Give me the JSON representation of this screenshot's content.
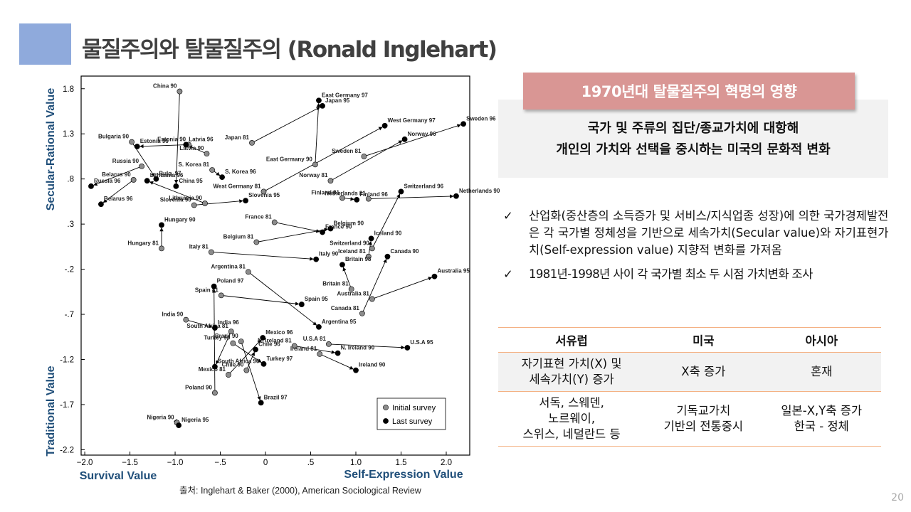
{
  "header": {
    "title": "물질주의와 탈물질주의 (Ronald Inglehart)"
  },
  "chart_data": {
    "type": "scatter",
    "y_label_top": "Secular-Rational Value",
    "y_label_bottom": "Traditional Value",
    "x_label_left": "Survival Value",
    "x_label_right": "Self-Expression Value",
    "source": "출처: Inglehart & Baker (2000), American Sociological Review",
    "xlim": [
      -2.04,
      2.26
    ],
    "ylim": [
      -2.26,
      1.94
    ],
    "xticks": [
      {
        "value": -2,
        "label": "−2.0"
      },
      {
        "value": -1.5,
        "label": "−1.5"
      },
      {
        "value": -1,
        "label": "−1.0"
      },
      {
        "value": -0.5,
        "label": "−.5"
      },
      0,
      {
        "value": 0.5,
        "label": ".5"
      },
      {
        "value": 1,
        "label": "1.0"
      },
      {
        "value": 1.5,
        "label": "1.5"
      },
      {
        "value": 2,
        "label": "2.0"
      }
    ],
    "yticks": [
      1.8,
      1.3,
      {
        "value": 0.8,
        "label": ".8"
      },
      {
        "value": 0.3,
        "label": ".3"
      },
      {
        "value": -0.2,
        "label": "-.2"
      },
      {
        "value": -0.7,
        "label": "-.7"
      },
      {
        "value": -1.2,
        "label": "-1.2"
      },
      {
        "value": -1.7,
        "label": "-1.7"
      },
      {
        "value": -2.2,
        "label": "-2.2"
      }
    ],
    "legend": "bottom-right",
    "series": [
      {
        "name": "Initial survey",
        "color": "#8c8c8c",
        "labels": [
          "China 90",
          "East Germany 90",
          "Japan 81",
          "West Germany 81",
          "Sweden 81",
          "Norway 81",
          "Finland 81",
          "Netherlands 81",
          "Switzerland 90",
          "Iceland 81",
          "Canada 81",
          "Australia 81",
          "Britain 81",
          "Belgium 81",
          "France 81",
          "Italy 81",
          "Argentina 81",
          "Spain 81",
          "Poland 90",
          "India 90",
          "South Africa 81",
          "Turkey 90",
          "Brazil 90",
          "Mexico 81",
          "Chile 90",
          "N. Ireland 81",
          "U.S.A 81",
          "Ireland 81",
          "Nigeria 90",
          "Hungary 81",
          "Russia 90",
          "Bulgaria 90",
          "Belarus 90",
          "Lithuania 90",
          "Estonia 90",
          "Latvia 90",
          "S. Korea 81",
          "Slovenia 90"
        ],
        "x": [
          -0.95,
          0.55,
          -0.15,
          -0.02,
          1.09,
          0.72,
          0.85,
          1.14,
          1.18,
          1.14,
          1.07,
          1.18,
          0.95,
          -0.1,
          0.1,
          -0.6,
          -0.19,
          -0.49,
          -0.56,
          -0.88,
          -0.38,
          -0.36,
          -0.27,
          -0.41,
          -0.21,
          0.32,
          0.7,
          0.6,
          -0.98,
          -1.15,
          -1.37,
          -1.48,
          -1.46,
          -0.67,
          -0.85,
          -0.65,
          -0.59,
          -0.79
        ],
        "y": [
          1.77,
          0.96,
          1.2,
          0.66,
          1.05,
          0.78,
          0.59,
          0.58,
          0.03,
          -0.06,
          -0.69,
          -0.53,
          -0.42,
          0.1,
          0.32,
          -0.01,
          -0.23,
          -0.49,
          -1.57,
          -0.76,
          -0.89,
          -1.02,
          -1.0,
          -1.37,
          -1.32,
          -1.05,
          -1.03,
          -1.14,
          -1.9,
          0.03,
          0.94,
          1.21,
          0.79,
          0.53,
          1.18,
          1.08,
          0.9,
          0.51
        ]
      },
      {
        "name": "Last survey",
        "color": "#000000",
        "labels": [
          "China 95",
          "East Germany 97",
          "Japan 95",
          "West Germany 97",
          "Sweden 96",
          "Norway 96",
          "Finland 96",
          "Netherlands 90",
          "Switzerland 96",
          "Iceland 90",
          "Canada 90",
          "Australia 95",
          "Britain 98",
          "Belgium 90",
          "France 90",
          "Italy 90",
          "Argentina 95",
          "Spain 95",
          "Poland 97",
          "India 96",
          "South Africa 96",
          "Turkey 97",
          "Brazil 97",
          "Mexico 96",
          "Chile 96",
          "N. Ireland 90",
          "U.S.A 95",
          "Ireland 90",
          "Nigeria 95",
          "Hungary 90",
          "Russia 96",
          "Bulg. 97",
          "Belarus 96",
          "Lithuania 96",
          "Estonia 96",
          "Latvia 96",
          "S. Korea 96",
          "Slovenia 95"
        ],
        "x": [
          -0.99,
          0.59,
          0.63,
          1.32,
          2.19,
          1.54,
          1.01,
          2.11,
          1.5,
          1.17,
          1.35,
          1.87,
          0.85,
          0.72,
          0.63,
          0.56,
          0.59,
          0.4,
          -0.57,
          -0.56,
          -0.56,
          -0.02,
          -0.05,
          -0.03,
          -0.11,
          0.8,
          1.57,
          1.0,
          -0.96,
          -1.15,
          -1.93,
          -1.21,
          -1.82,
          -1.31,
          -1.42,
          -0.88,
          -0.48,
          -0.22
        ],
        "y": [
          0.72,
          1.67,
          1.61,
          1.39,
          1.41,
          1.24,
          0.57,
          0.61,
          0.66,
          0.14,
          -0.06,
          -0.28,
          -0.15,
          0.25,
          0.21,
          -0.09,
          -0.84,
          -0.59,
          -0.39,
          -0.85,
          -1.28,
          -1.25,
          -1.68,
          -0.96,
          -1.09,
          -1.13,
          -1.07,
          -1.32,
          -1.93,
          0.29,
          0.72,
          0.8,
          0.52,
          0.78,
          1.16,
          1.18,
          0.82,
          0.56
        ]
      }
    ]
  },
  "panel": {
    "heading": "1970년대 탈물질주의 혁명의 영향",
    "summary": "국가 및 주류의 집단/종교가치에 대항해\n개인의 가치와 선택을 중시하는 미국의 문화적 변화",
    "bullets": [
      "산업화(중산층의 소득증가 및 서비스/지식업종 성장)에 의한 국가경제발전은 각 국가별 정체성을 기반으로 세속가치(Secular value)와 자기표현가치(Self-expression value) 지향적 변화를 가져옴",
      "1981년-1998년 사이 각 국가별 최소 두 시점 가치변화 조사"
    ]
  },
  "table": {
    "header": [
      "서유럽",
      "미국",
      "아시아"
    ],
    "rows": [
      [
        "자기표현 가치(X) 및\n세속가치(Y) 증가",
        "X축 증가",
        "혼재"
      ],
      [
        "서독, 스웨덴,\n노르웨이,\n스위스, 네덜란드 등",
        "기독교가치\n기반의 전통중시",
        "일본-X,Y축 증가\n한국 - 정체"
      ]
    ]
  },
  "page_number": "20"
}
